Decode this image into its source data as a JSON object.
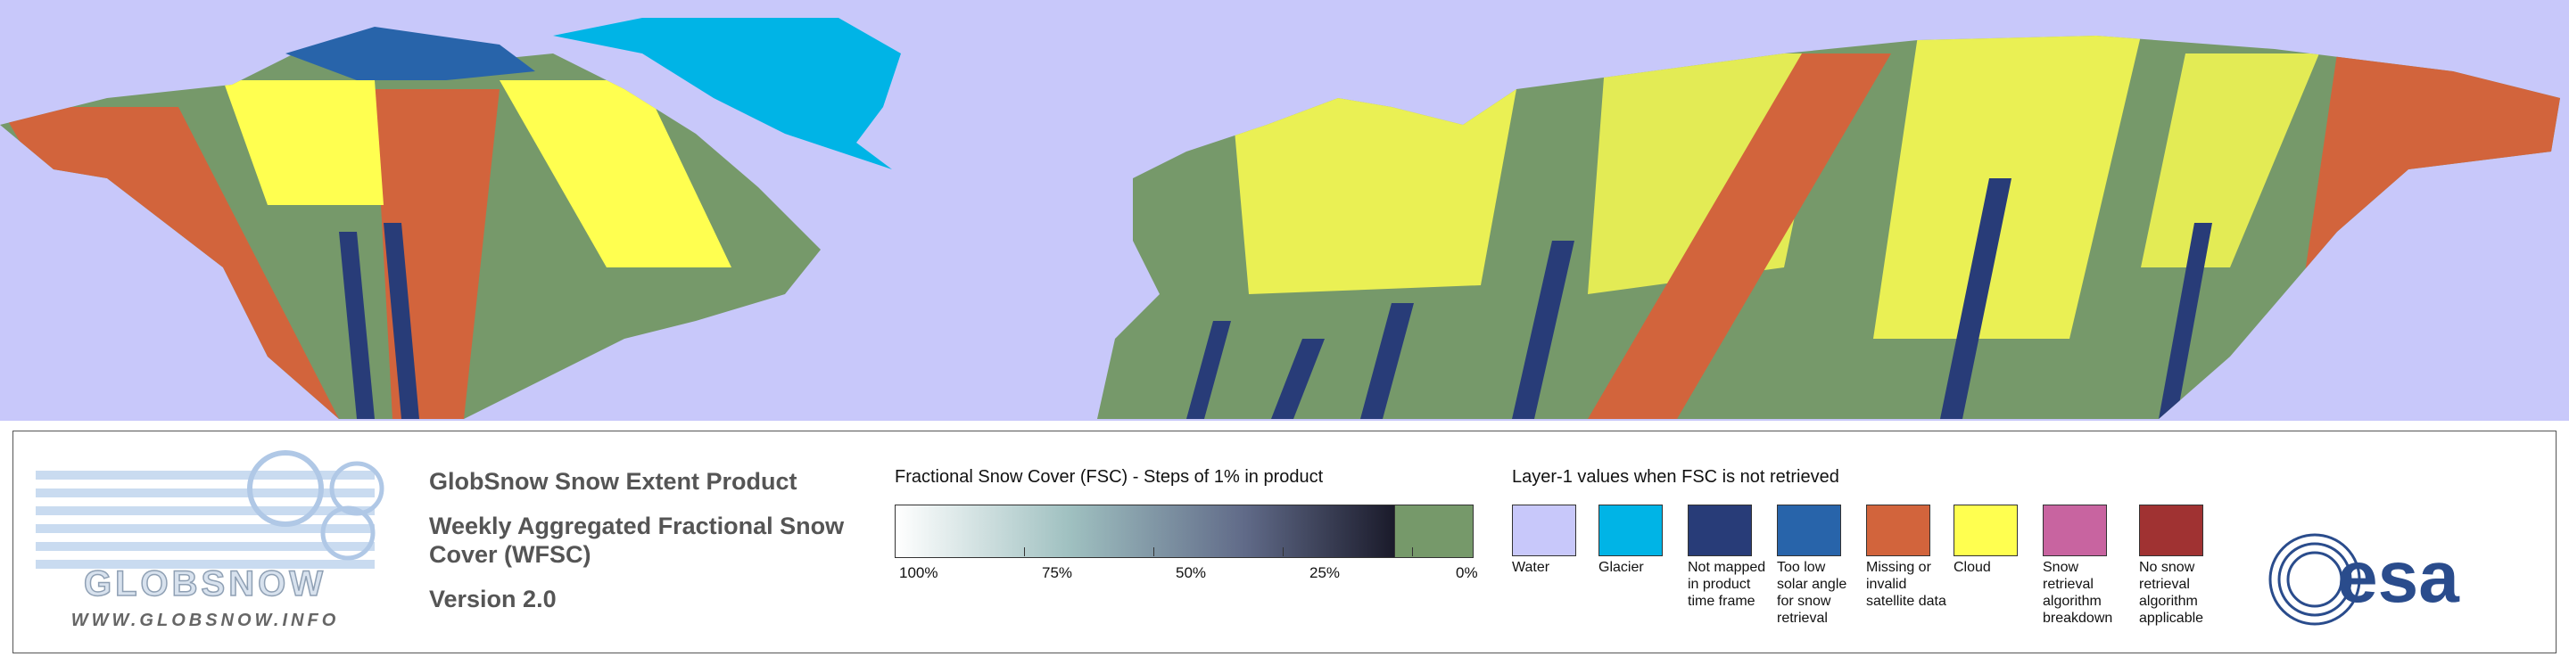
{
  "header": {
    "product": "GlobSnow Snow Extent Product",
    "subtitle_line1": "Weekly Aggregated Fractional Snow",
    "subtitle_line2": "Cover (WFSC)",
    "version": "Version 2.0"
  },
  "logo": {
    "name": "GLOBSNOW",
    "url": "WWW.GLOBSNOW.INFO"
  },
  "fsc_legend": {
    "title": "Fractional Snow Cover (FSC) - Steps of 1% in product",
    "ticks": [
      "100%",
      "75%",
      "50%",
      "25%",
      "0%"
    ]
  },
  "layer_legend": {
    "title": "Layer-1 values when FSC is not retrieved",
    "items": [
      {
        "label": "Water",
        "color": "#c8c8fa"
      },
      {
        "label": "Glacier",
        "color": "#00b4e6"
      },
      {
        "label": "Not mapped in product time frame",
        "color": "#283c78"
      },
      {
        "label": "Too low solar angle for snow retrieval",
        "color": "#2864aa"
      },
      {
        "label": "Missing or invalid satellite data",
        "color": "#d2643c"
      },
      {
        "label": "Cloud",
        "color": "#ffff50"
      },
      {
        "label": "Snow retrieval algorithm breakdown",
        "color": "#c864a0"
      },
      {
        "label": "No snow retrieval algorithm applicable",
        "color": "#a03232"
      }
    ]
  },
  "esa": {
    "name": "esa"
  }
}
